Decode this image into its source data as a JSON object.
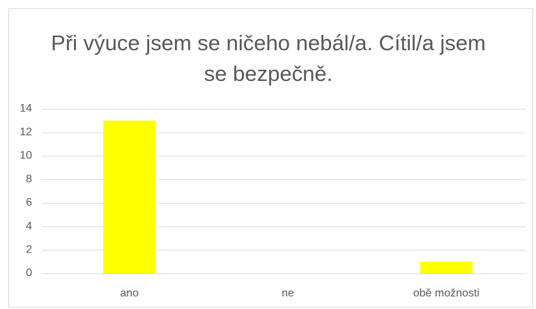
{
  "chart_data": {
    "type": "bar",
    "title": "Při výuce jsem se ničeho nebál/a. Cítil/a jsem se bezpečně.",
    "categories": [
      "ano",
      "ne",
      "obě možnosti"
    ],
    "values": [
      13,
      0,
      1
    ],
    "color": "#ffff00",
    "ylim": [
      0,
      14
    ],
    "yticks": [
      0,
      2,
      4,
      6,
      8,
      10,
      12,
      14
    ],
    "grid": true
  }
}
